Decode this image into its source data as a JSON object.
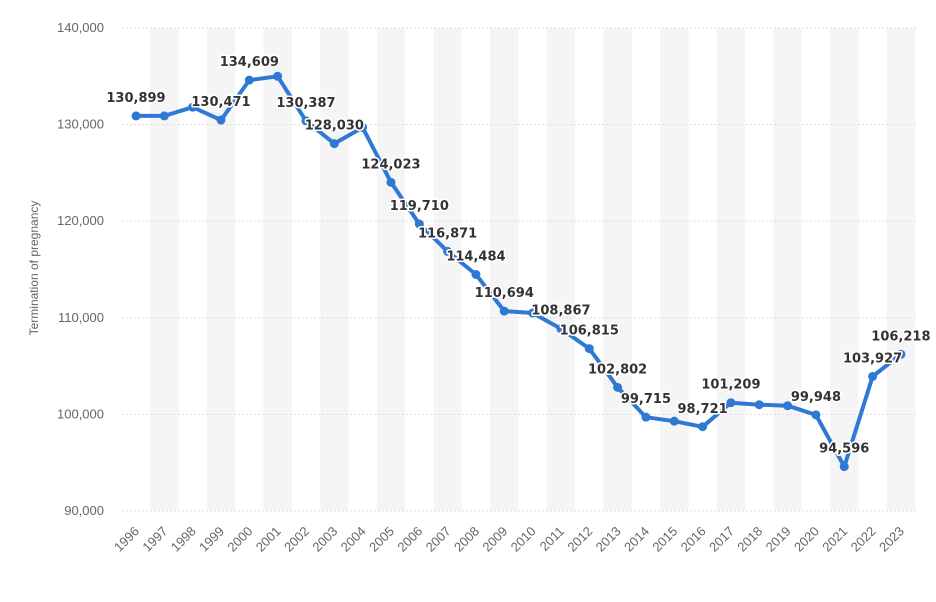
{
  "chart_data": {
    "type": "line",
    "title": "",
    "xlabel": "",
    "ylabel": "Termination of pregnancy",
    "ylim": [
      90000,
      140000
    ],
    "yticks": [
      90000,
      100000,
      110000,
      120000,
      130000,
      140000
    ],
    "ytick_labels": [
      "90,000",
      "100,000",
      "110,000",
      "120,000",
      "130,000",
      "140,000"
    ],
    "grid": true,
    "series_color": "#2f78d4",
    "band_color": "#f5f5f5",
    "grid_color": "#dddddd",
    "categories": [
      "1996",
      "1997",
      "1998",
      "1999",
      "2000",
      "2001",
      "2002",
      "2003",
      "2004",
      "2005",
      "2006",
      "2007",
      "2008",
      "2009",
      "2010",
      "2011",
      "2012",
      "2013",
      "2014",
      "2015",
      "2016",
      "2017",
      "2018",
      "2019",
      "2020",
      "2021",
      "2022",
      "2023"
    ],
    "values": [
      130899,
      130899,
      131800,
      130471,
      134609,
      135000,
      130387,
      128030,
      129700,
      124023,
      119710,
      116871,
      114484,
      110694,
      110500,
      108867,
      106815,
      102802,
      99715,
      99300,
      98721,
      101209,
      101000,
      100900,
      99948,
      94596,
      103927,
      106218
    ],
    "data_labels": [
      {
        "index": 0,
        "text": "130,899"
      },
      {
        "index": 3,
        "text": "130,471"
      },
      {
        "index": 4,
        "text": "134,609"
      },
      {
        "index": 6,
        "text": "130,387"
      },
      {
        "index": 7,
        "text": "128,030"
      },
      {
        "index": 9,
        "text": "124,023"
      },
      {
        "index": 10,
        "text": "119,710"
      },
      {
        "index": 11,
        "text": "116,871"
      },
      {
        "index": 12,
        "text": "114,484"
      },
      {
        "index": 13,
        "text": "110,694"
      },
      {
        "index": 15,
        "text": "108,867"
      },
      {
        "index": 16,
        "text": "106,815"
      },
      {
        "index": 17,
        "text": "102,802"
      },
      {
        "index": 18,
        "text": "99,715"
      },
      {
        "index": 20,
        "text": "98,721"
      },
      {
        "index": 21,
        "text": "101,209"
      },
      {
        "index": 24,
        "text": "99,948"
      },
      {
        "index": 25,
        "text": "94,596"
      },
      {
        "index": 26,
        "text": "103,927"
      },
      {
        "index": 27,
        "text": "106,218"
      }
    ]
  }
}
